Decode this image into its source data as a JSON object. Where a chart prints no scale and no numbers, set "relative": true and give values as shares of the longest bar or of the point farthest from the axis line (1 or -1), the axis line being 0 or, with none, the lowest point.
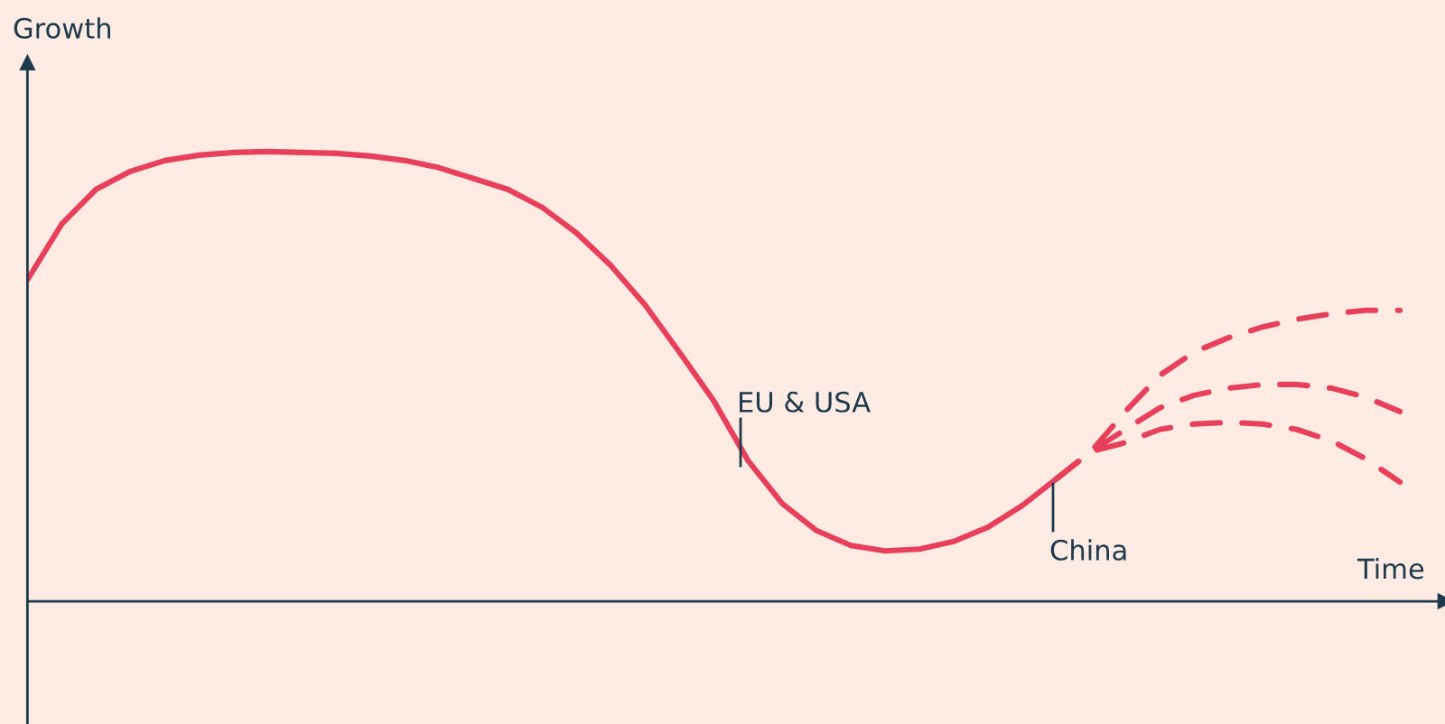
{
  "chart_data": {
    "type": "line",
    "relative": true,
    "xlabel": "Time",
    "ylabel": "Growth",
    "categories": [
      null,
      null,
      null,
      null,
      null,
      null,
      null,
      null,
      null,
      null,
      null,
      null,
      null,
      null,
      null,
      null,
      null,
      null,
      null,
      null,
      null,
      null,
      null,
      null,
      null,
      null,
      null,
      null,
      null,
      null,
      null,
      null,
      null,
      null,
      null,
      null,
      null,
      null,
      null,
      null,
      null
    ],
    "series": [
      {
        "color": "#e8405a",
        "line_style": "solid",
        "values": [
          0.715,
          0.839,
          0.916,
          0.956,
          0.98,
          0.992,
          0.998,
          1,
          0.998,
          0.996,
          0.99,
          0.98,
          0.964,
          0.94,
          0.916,
          0.876,
          0.819,
          0.747,
          0.659,
          0.554,
          0.446,
          0.313,
          0.217,
          0.157,
          0.124,
          0.112,
          0.116,
          0.133,
          0.165,
          0.213,
          0.273,
          null,
          null,
          null,
          null,
          null,
          null,
          null,
          null,
          null,
          null
        ]
      },
      {
        "color": "#e8405a",
        "line_style": "dashed",
        "values": [
          null,
          null,
          null,
          null,
          null,
          null,
          null,
          null,
          null,
          null,
          null,
          null,
          null,
          null,
          null,
          null,
          null,
          null,
          null,
          null,
          null,
          null,
          null,
          null,
          null,
          null,
          null,
          null,
          null,
          null,
          0.273,
          0.333,
          0.422,
          0.502,
          0.554,
          0.586,
          0.61,
          0.627,
          0.639,
          0.647,
          0.647
        ]
      },
      {
        "color": "#e8405a",
        "line_style": "dashed",
        "values": [
          null,
          null,
          null,
          null,
          null,
          null,
          null,
          null,
          null,
          null,
          null,
          null,
          null,
          null,
          null,
          null,
          null,
          null,
          null,
          null,
          null,
          null,
          null,
          null,
          null,
          null,
          null,
          null,
          null,
          null,
          0.273,
          0.333,
          0.382,
          0.43,
          0.458,
          0.474,
          0.482,
          0.482,
          0.474,
          0.454,
          0.422
        ]
      },
      {
        "color": "#e8405a",
        "line_style": "dashed",
        "values": [
          null,
          null,
          null,
          null,
          null,
          null,
          null,
          null,
          null,
          null,
          null,
          null,
          null,
          null,
          null,
          null,
          null,
          null,
          null,
          null,
          null,
          null,
          null,
          null,
          null,
          null,
          null,
          null,
          null,
          null,
          0.273,
          0.333,
          0.353,
          0.382,
          0.394,
          0.398,
          0.394,
          0.382,
          0.357,
          0.317,
          0.265
        ]
      }
    ],
    "annotations": [
      "EU & USA",
      "China"
    ]
  }
}
